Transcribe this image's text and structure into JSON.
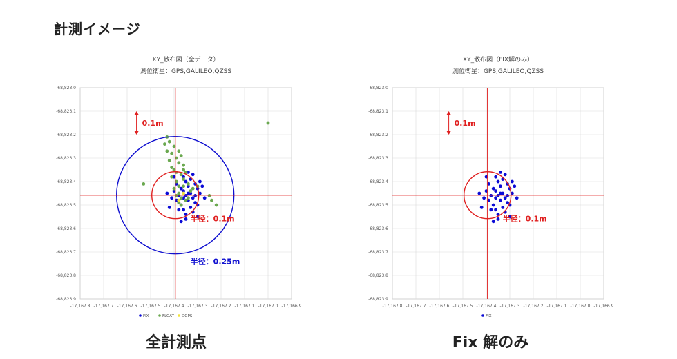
{
  "page": {
    "heading": "計測イメージ",
    "caption_left": "全計測点",
    "caption_right": "Fix 解のみ"
  },
  "colors": {
    "fix": "#0b0bd6",
    "float": "#6aa84f",
    "dgps": "#f2e23a",
    "red": "#e02020",
    "blue": "#1010d0"
  },
  "chart_data": [
    {
      "type": "scatter",
      "title": "XY_散布図（全データ）",
      "subtitle": "測位衛星：GPS,GALILEO,QZSS",
      "xlim": [
        -167.8,
        -166.9
      ],
      "ylim": [
        -825.9,
        -825.0
      ],
      "x_ticks": [
        "-17,167.8",
        "-17,167.7",
        "-17,167.6",
        "-17,167.5",
        "-17,167.4",
        "-17,167.3",
        "-17,167.2",
        "-17,167.1",
        "-17,167.0",
        "-17,166.9"
      ],
      "y_ticks": [
        "-68,823.0",
        "-68,823.1",
        "-68,823.2",
        "-68,823.3",
        "-68,823.4",
        "-68,823.5",
        "-68,823.6",
        "-68,823.7",
        "-68,823.8",
        "-68,823.9"
      ],
      "grid": true,
      "legend": [
        "FIX",
        "FLOAT",
        "DGPS"
      ],
      "legend_position": "bottom",
      "crosshair": {
        "x": -167.395,
        "y": -825.458
      },
      "circles": [
        {
          "radius": 0.1,
          "color": "red",
          "label": "半径：0.1m"
        },
        {
          "radius": 0.25,
          "color": "blue",
          "label": "半径：0.25m"
        }
      ],
      "scale_annotation": "0.1m",
      "series": [
        {
          "name": "FIX",
          "color": "fix",
          "points": [
            [
              -167.36,
              -825.44
            ],
            [
              -167.35,
              -825.46
            ],
            [
              -167.34,
              -825.48
            ],
            [
              -167.33,
              -825.45
            ],
            [
              -167.32,
              -825.47
            ],
            [
              -167.37,
              -825.5
            ],
            [
              -167.36,
              -825.52
            ],
            [
              -167.33,
              -825.51
            ],
            [
              -167.31,
              -825.49
            ],
            [
              -167.3,
              -825.43
            ],
            [
              -167.34,
              -825.42
            ],
            [
              -167.38,
              -825.46
            ],
            [
              -167.39,
              -825.48
            ],
            [
              -167.35,
              -825.4
            ],
            [
              -167.31,
              -825.41
            ],
            [
              -167.29,
              -825.45
            ],
            [
              -167.37,
              -825.43
            ],
            [
              -167.33,
              -825.39
            ],
            [
              -167.32,
              -825.53
            ],
            [
              -167.35,
              -825.54
            ],
            [
              -167.38,
              -825.52
            ],
            [
              -167.4,
              -825.44
            ],
            [
              -167.41,
              -825.47
            ],
            [
              -167.3,
              -825.5
            ],
            [
              -167.28,
              -825.42
            ],
            [
              -167.29,
              -825.4
            ],
            [
              -167.36,
              -825.38
            ],
            [
              -167.34,
              -825.36
            ],
            [
              -167.32,
              -825.37
            ],
            [
              -167.39,
              -825.41
            ],
            [
              -167.4,
              -825.38
            ],
            [
              -167.35,
              -825.56
            ],
            [
              -167.3,
              -825.55
            ],
            [
              -167.37,
              -825.57
            ],
            [
              -167.42,
              -825.51
            ],
            [
              -167.27,
              -825.47
            ],
            [
              -167.43,
              -825.45
            ],
            [
              -167.34,
              -825.45
            ],
            [
              -167.36,
              -825.47
            ],
            [
              -167.31,
              -825.46
            ]
          ]
        },
        {
          "name": "FLOAT",
          "color": "float",
          "points": [
            [
              -167.4,
              -825.25
            ],
            [
              -167.41,
              -825.28
            ],
            [
              -167.39,
              -825.3
            ],
            [
              -167.38,
              -825.32
            ],
            [
              -167.4,
              -825.35
            ],
            [
              -167.37,
              -825.37
            ],
            [
              -167.39,
              -825.4
            ],
            [
              -167.36,
              -825.42
            ],
            [
              -167.38,
              -825.45
            ],
            [
              -167.35,
              -825.48
            ],
            [
              -167.37,
              -825.5
            ],
            [
              -167.36,
              -825.33
            ],
            [
              -167.35,
              -825.36
            ],
            [
              -167.42,
              -825.31
            ],
            [
              -167.43,
              -825.27
            ],
            [
              -167.42,
              -825.23
            ],
            [
              -167.43,
              -825.21
            ],
            [
              -167.44,
              -825.24
            ],
            [
              -167.41,
              -825.34
            ],
            [
              -167.39,
              -825.36
            ],
            [
              -167.37,
              -825.29
            ],
            [
              -167.38,
              -825.27
            ],
            [
              -167.36,
              -825.39
            ],
            [
              -167.34,
              -825.41
            ],
            [
              -167.33,
              -825.44
            ],
            [
              -167.4,
              -825.43
            ],
            [
              -167.39,
              -825.46
            ],
            [
              -167.37,
              -825.47
            ],
            [
              -167.34,
              -825.47
            ],
            [
              -167.32,
              -825.43
            ],
            [
              -167.3,
              -825.42
            ],
            [
              -167.25,
              -825.46
            ],
            [
              -167.24,
              -825.48
            ],
            [
              -167.22,
              -825.5
            ],
            [
              -167.53,
              -825.41
            ],
            [
              -167.0,
              -825.15
            ],
            [
              -167.41,
              -825.38
            ],
            [
              -167.38,
              -825.49
            ],
            [
              -167.36,
              -825.35
            ],
            [
              -167.38,
              -825.42
            ]
          ]
        },
        {
          "name": "DGPS",
          "color": "dgps",
          "points": [
            [
              -167.38,
              -825.48
            ],
            [
              -167.36,
              -825.45
            ]
          ]
        }
      ]
    },
    {
      "type": "scatter",
      "title": "XY_散布図（FIX解のみ）",
      "subtitle": "測位衛星：GPS,GALILEO,QZSS",
      "xlim": [
        -167.8,
        -166.9
      ],
      "ylim": [
        -825.9,
        -825.0
      ],
      "x_ticks": [
        "-17,167.8",
        "-17,167.7",
        "-17,167.6",
        "-17,167.5",
        "-17,167.4",
        "-17,167.3",
        "-17,167.2",
        "-17,167.1",
        "-17,167.0",
        "-17,166.9"
      ],
      "y_ticks": [
        "-68,823.0",
        "-68,823.1",
        "-68,823.2",
        "-68,823.3",
        "-68,823.4",
        "-68,823.5",
        "-68,823.6",
        "-68,823.7",
        "-68,823.8",
        "-68,823.9"
      ],
      "grid": true,
      "legend": [
        "FIX"
      ],
      "legend_position": "bottom",
      "crosshair": {
        "x": -167.395,
        "y": -825.458
      },
      "circles": [
        {
          "radius": 0.1,
          "color": "red",
          "label": "半径：0.1m"
        }
      ],
      "scale_annotation": "0.1m",
      "series": [
        {
          "name": "FIX",
          "color": "fix",
          "points": [
            [
              -167.36,
              -825.44
            ],
            [
              -167.35,
              -825.46
            ],
            [
              -167.34,
              -825.48
            ],
            [
              -167.33,
              -825.45
            ],
            [
              -167.32,
              -825.47
            ],
            [
              -167.37,
              -825.5
            ],
            [
              -167.36,
              -825.52
            ],
            [
              -167.33,
              -825.51
            ],
            [
              -167.31,
              -825.49
            ],
            [
              -167.3,
              -825.43
            ],
            [
              -167.34,
              -825.42
            ],
            [
              -167.38,
              -825.46
            ],
            [
              -167.39,
              -825.48
            ],
            [
              -167.35,
              -825.4
            ],
            [
              -167.31,
              -825.41
            ],
            [
              -167.29,
              -825.45
            ],
            [
              -167.37,
              -825.43
            ],
            [
              -167.33,
              -825.39
            ],
            [
              -167.32,
              -825.53
            ],
            [
              -167.35,
              -825.54
            ],
            [
              -167.38,
              -825.52
            ],
            [
              -167.4,
              -825.44
            ],
            [
              -167.41,
              -825.47
            ],
            [
              -167.3,
              -825.5
            ],
            [
              -167.28,
              -825.42
            ],
            [
              -167.29,
              -825.4
            ],
            [
              -167.36,
              -825.38
            ],
            [
              -167.34,
              -825.36
            ],
            [
              -167.32,
              -825.37
            ],
            [
              -167.39,
              -825.41
            ],
            [
              -167.4,
              -825.38
            ],
            [
              -167.35,
              -825.56
            ],
            [
              -167.3,
              -825.55
            ],
            [
              -167.37,
              -825.57
            ],
            [
              -167.42,
              -825.51
            ],
            [
              -167.27,
              -825.47
            ],
            [
              -167.43,
              -825.45
            ],
            [
              -167.34,
              -825.45
            ],
            [
              -167.36,
              -825.47
            ],
            [
              -167.31,
              -825.46
            ]
          ]
        }
      ]
    }
  ]
}
